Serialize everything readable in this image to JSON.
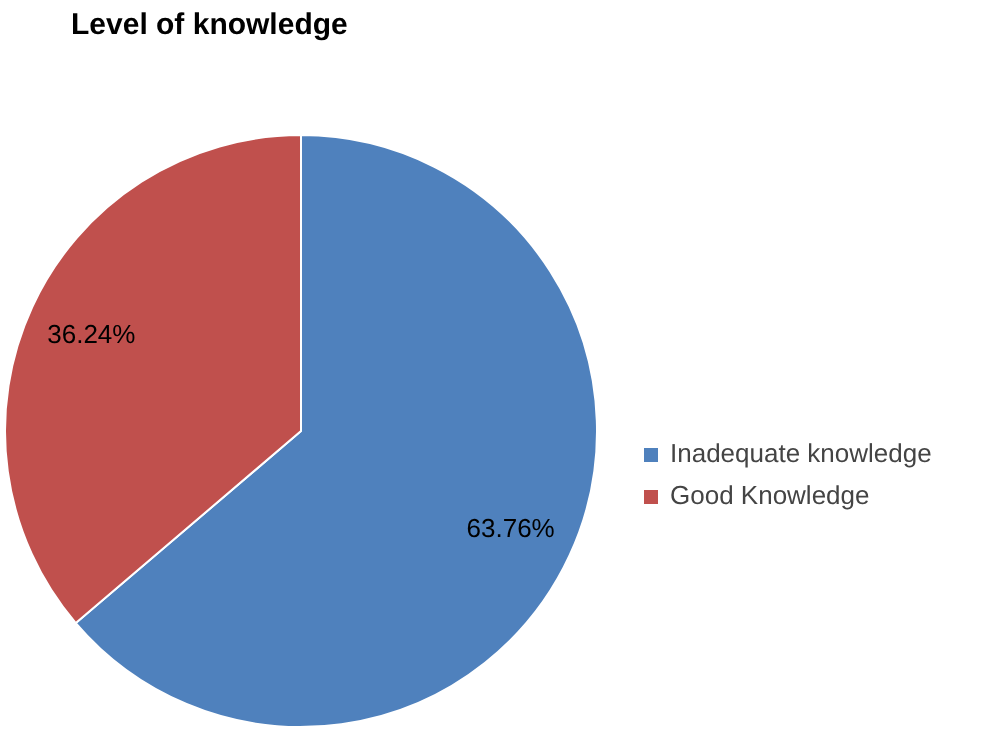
{
  "chart_data": {
    "type": "pie",
    "title": "Level of knowledge",
    "categories": [
      "Inadequate knowledge",
      "Good Knowledge"
    ],
    "values": [
      63.76,
      36.24
    ],
    "colors": [
      "#4f81bd",
      "#c0504d"
    ],
    "value_labels": [
      "63.76%",
      "36.24%"
    ],
    "legend": "right"
  }
}
